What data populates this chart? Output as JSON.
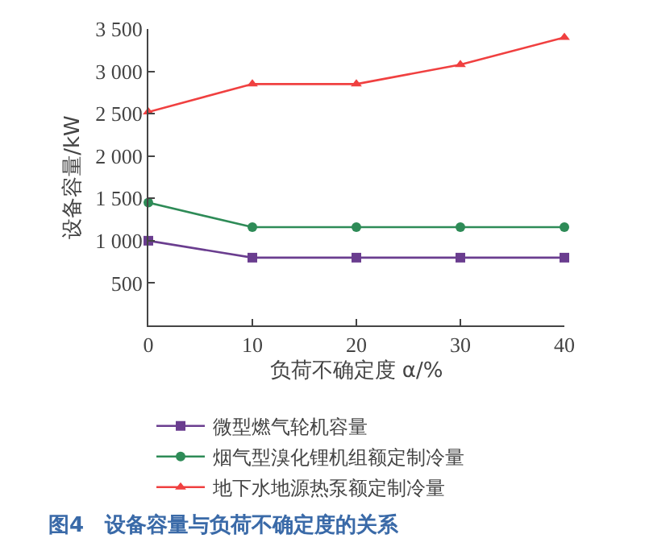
{
  "chart_data": {
    "type": "line",
    "title": "图4　设备容量与负荷不确定度的关系",
    "xlabel": "负荷不确定度 α/%",
    "ylabel": "设备容量/kW",
    "x": [
      0,
      10,
      20,
      30,
      40
    ],
    "series": [
      {
        "name": "微型燃气轮机容量",
        "color": "#6a3d8f",
        "marker": "square",
        "values": [
          1000,
          800,
          800,
          800,
          800
        ]
      },
      {
        "name": "烟气型溴化锂机组额定制冷量",
        "color": "#2e8b57",
        "marker": "circle",
        "values": [
          1450,
          1160,
          1160,
          1160,
          1160
        ]
      },
      {
        "name": "地下水地源热泵额定制冷量",
        "color": "#f04040",
        "marker": "triangle",
        "values": [
          2520,
          2850,
          2850,
          3080,
          3400
        ]
      }
    ],
    "xlim": [
      0,
      40
    ],
    "xticks": [
      0,
      10,
      20,
      30,
      40
    ],
    "ylim": [
      0,
      3500
    ],
    "yticks": [
      {
        "value": 500,
        "label": "500"
      },
      {
        "value": 1000,
        "label": "1 000"
      },
      {
        "value": 1500,
        "label": "1 500"
      },
      {
        "value": 2000,
        "label": "2 000"
      },
      {
        "value": 2500,
        "label": "2 500"
      },
      {
        "value": 3000,
        "label": "3 000"
      },
      {
        "value": 3500,
        "label": "3 500"
      }
    ],
    "grid": false,
    "legend": "bottom",
    "line_style": "solid"
  }
}
